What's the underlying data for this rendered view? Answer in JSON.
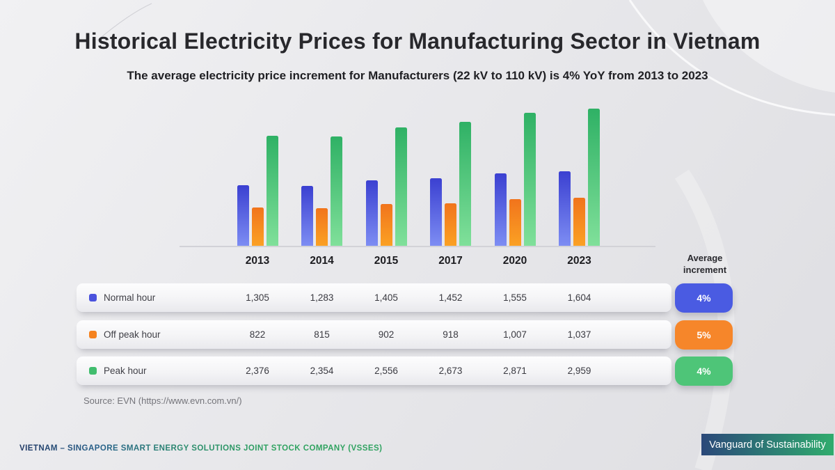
{
  "slide": {
    "title": "Historical Electricity Prices for Manufacturing Sector in Vietnam",
    "subtitle": "The average electricity price increment for Manufacturers (22 kV to 110 kV) is 4% YoY from 2013 to 2023",
    "source": "Source: EVN (https://www.evn.com.vn/)",
    "footer_company": "VIETNAM – SINGAPORE SMART ENERGY SOLUTIONS JOINT STOCK COMPANY (VSSES)",
    "footer_banner": "Vanguard of Sustainability"
  },
  "chart_data": {
    "type": "bar",
    "categories": [
      "2013",
      "2014",
      "2015",
      "2017",
      "2020",
      "2023"
    ],
    "series": [
      {
        "name": "Normal hour",
        "color_top": "#3b40d1",
        "color_bottom": "#7d8df3",
        "values": [
          1305,
          1283,
          1405,
          1452,
          1555,
          1604
        ]
      },
      {
        "name": "Off peak hour",
        "color_top": "#f1741c",
        "color_bottom": "#fba124",
        "values": [
          822,
          815,
          902,
          918,
          1007,
          1037
        ]
      },
      {
        "name": "Peak hour",
        "color_top": "#2fb165",
        "color_bottom": "#80e09a",
        "values": [
          2376,
          2354,
          2556,
          2673,
          2871,
          2959
        ]
      }
    ],
    "ylim": [
      0,
      3000
    ],
    "title": "",
    "xlabel": "",
    "ylabel": "",
    "grid": false,
    "legend_position": "table-rows-left"
  },
  "table": {
    "avg_header": "Average increment",
    "columns": [
      "2013",
      "2014",
      "2015",
      "2017",
      "2020",
      "2023"
    ],
    "rows": [
      {
        "label": "Normal hour",
        "swatch": "#4a52dd",
        "values": [
          "1,305",
          "1,283",
          "1,405",
          "1,452",
          "1,555",
          "1,604"
        ],
        "avg": "4%",
        "badge": "#4a5be2"
      },
      {
        "label": "Off peak hour",
        "swatch": "#f5821f",
        "values": [
          "822",
          "815",
          "902",
          "918",
          "1,007",
          "1,037"
        ],
        "avg": "5%",
        "badge": "#f6862a"
      },
      {
        "label": "Peak hour",
        "swatch": "#41bd6e",
        "values": [
          "2,376",
          "2,354",
          "2,556",
          "2,673",
          "2,871",
          "2,959"
        ],
        "avg": "4%",
        "badge": "#4ec578"
      }
    ]
  }
}
